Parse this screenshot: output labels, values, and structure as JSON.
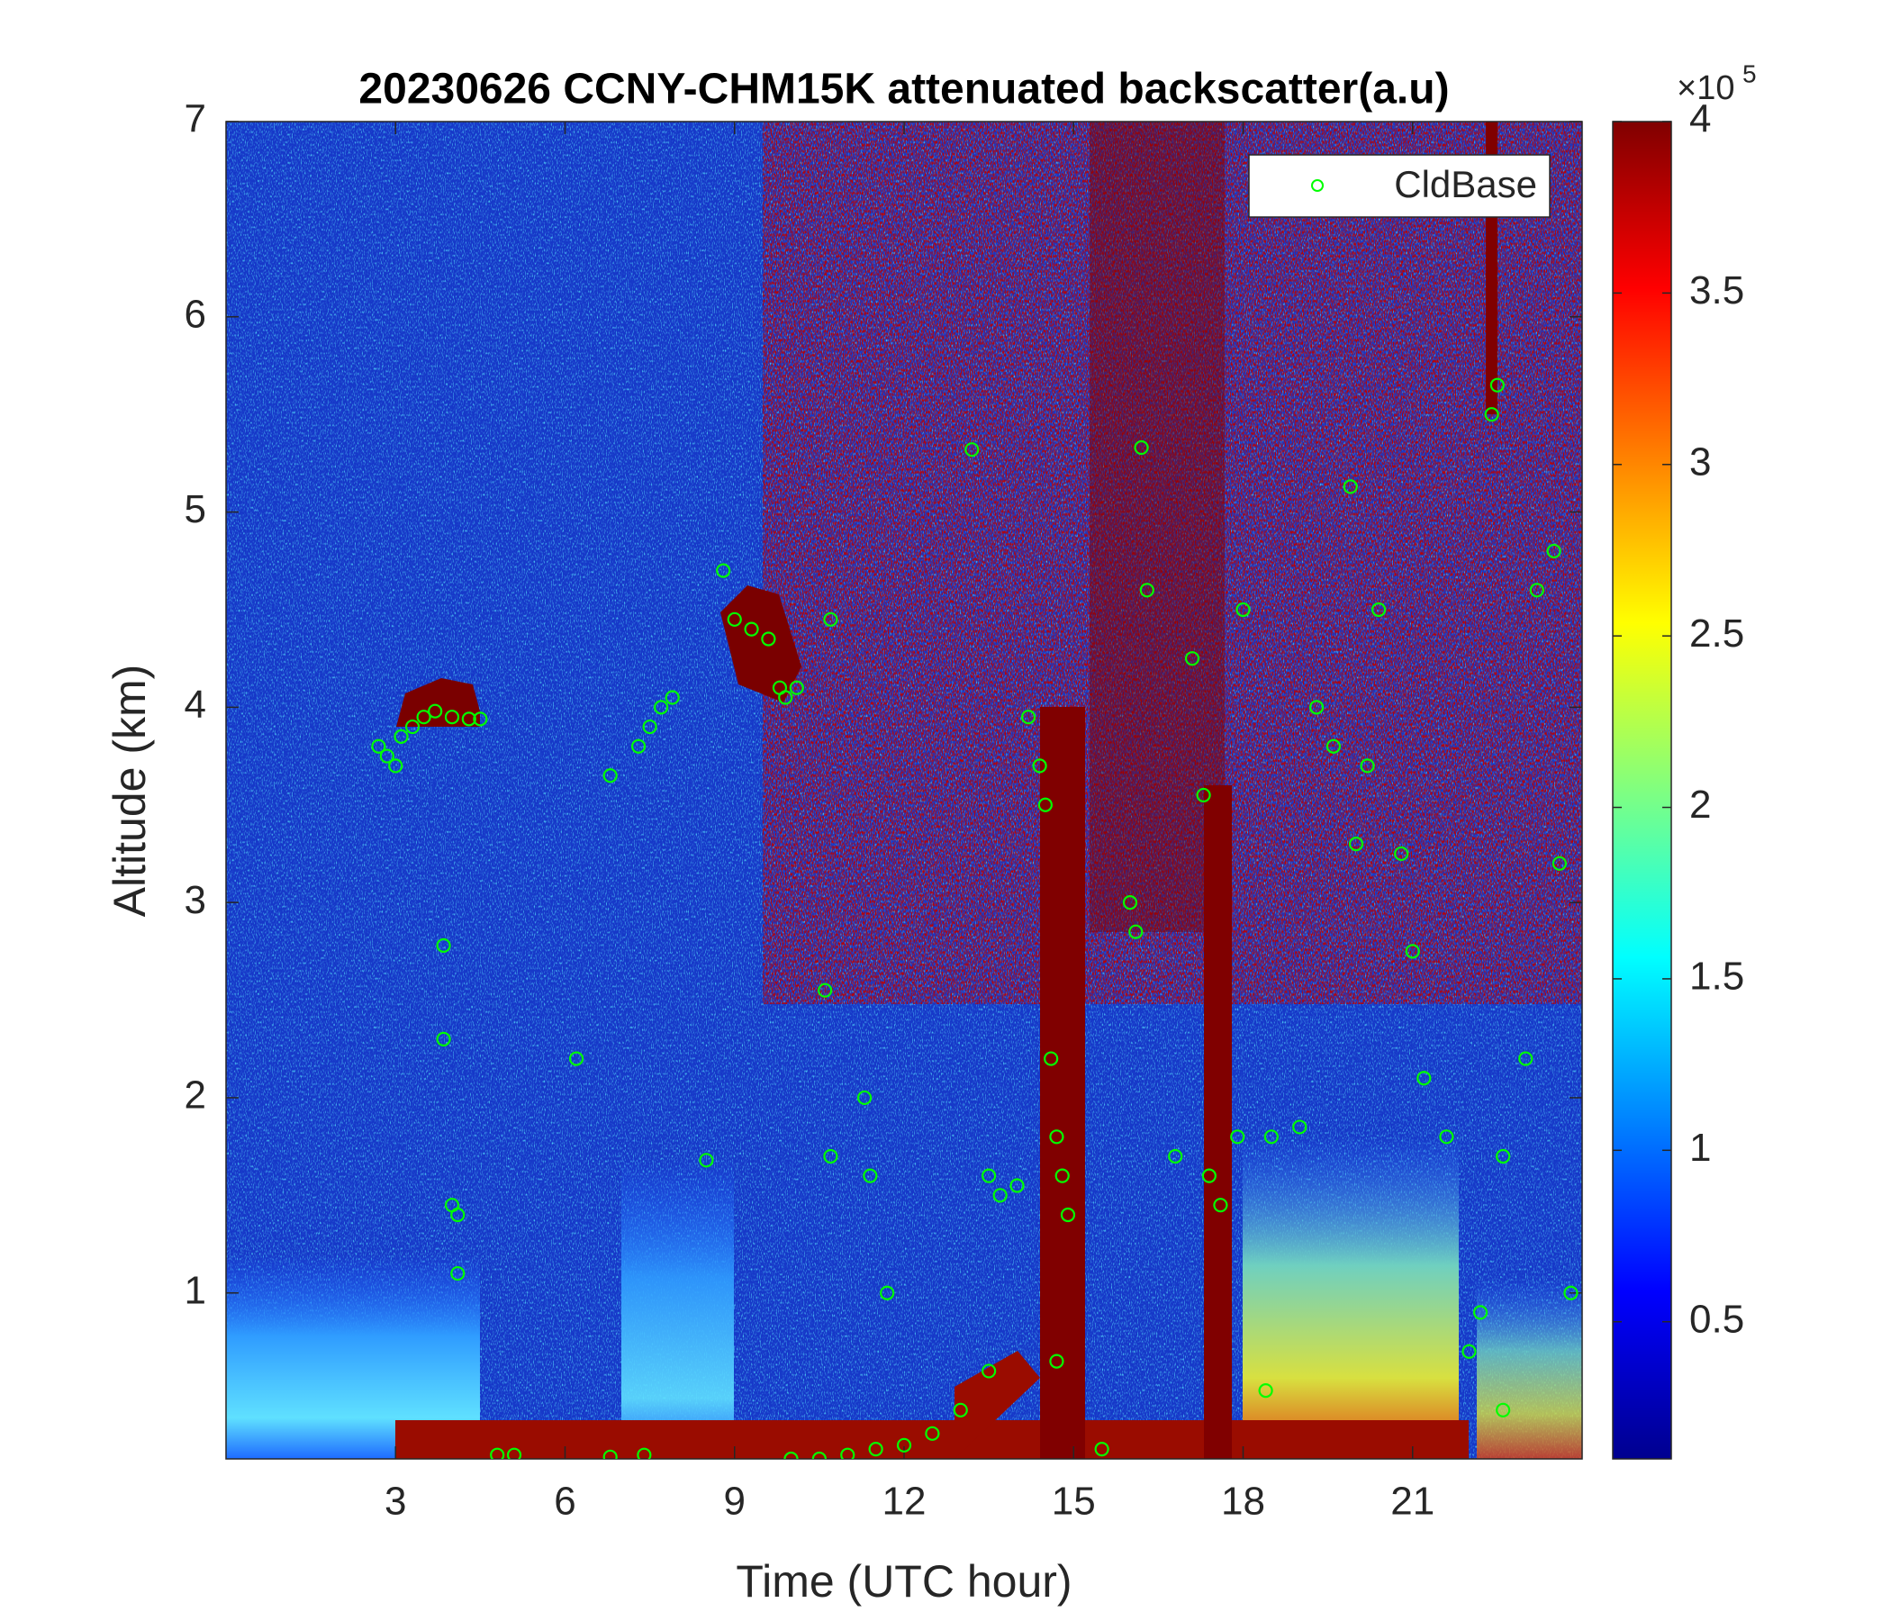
{
  "chart_data": {
    "type": "scatter",
    "title": "20230626 CCNY-CHM15K attenuated backscatter(a.u)",
    "x_label": "Time (UTC hour)",
    "y_label": "Altitude (km)",
    "xlim": [
      0,
      24
    ],
    "xticks": [
      3,
      6,
      9,
      12,
      15,
      18,
      21
    ],
    "ylim": [
      0.15,
      7
    ],
    "yticks": [
      1,
      2,
      3,
      4,
      5,
      6,
      7
    ],
    "legend": "upper right",
    "colorbar": {
      "colormap": "jet",
      "lim": [
        0.1,
        4
      ],
      "ticks": [
        0.5,
        1,
        1.5,
        2,
        2.5,
        3,
        3.5,
        4
      ],
      "multiplier": "×10",
      "exponent": "5"
    },
    "series": [
      {
        "name": "CldBase",
        "color": "#00ff00",
        "x": [
          2.7,
          2.85,
          3.0,
          3.1,
          3.3,
          3.5,
          3.7,
          4.0,
          4.3,
          4.5,
          3.85,
          3.85,
          4.0,
          4.1,
          4.1,
          6.2,
          6.8,
          7.3,
          7.5,
          7.7,
          7.9,
          8.5,
          8.8,
          9.0,
          9.3,
          9.6,
          9.8,
          9.9,
          10.1,
          10.0,
          10.5,
          11.0,
          11.5,
          12.0,
          12.5,
          13.0,
          13.5,
          10.7,
          10.7,
          10.6,
          11.3,
          11.4,
          11.7,
          13.2,
          13.5,
          13.7,
          14.0,
          14.2,
          14.4,
          14.5,
          14.6,
          14.7,
          14.8,
          14.9,
          14.7,
          15.5,
          16.0,
          16.1,
          16.3,
          16.2,
          16.8,
          17.1,
          17.3,
          17.4,
          17.6,
          17.9,
          18.0,
          18.4,
          18.5,
          19.0,
          19.3,
          19.6,
          19.9,
          20.0,
          20.2,
          20.4,
          20.8,
          21.0,
          21.2,
          21.6,
          22.4,
          22.5,
          22.0,
          22.2,
          22.6,
          23.0,
          23.2,
          23.5,
          23.6,
          23.8,
          22.6,
          5.1,
          6.8,
          7.4,
          4.8
        ],
        "y": [
          3.8,
          3.75,
          3.7,
          3.85,
          3.9,
          3.95,
          3.98,
          3.95,
          3.94,
          3.94,
          2.78,
          2.3,
          1.45,
          1.4,
          1.1,
          2.2,
          3.65,
          3.8,
          3.9,
          4.0,
          4.05,
          1.68,
          4.7,
          4.45,
          4.4,
          4.35,
          4.1,
          4.05,
          4.1,
          0.15,
          0.15,
          0.17,
          0.2,
          0.22,
          0.28,
          0.4,
          0.6,
          4.45,
          1.7,
          2.55,
          2.0,
          1.6,
          1.0,
          5.32,
          1.6,
          1.5,
          1.55,
          3.95,
          3.7,
          3.5,
          2.2,
          1.8,
          1.6,
          1.4,
          0.65,
          0.2,
          3.0,
          2.85,
          4.6,
          5.33,
          1.7,
          4.25,
          3.55,
          1.6,
          1.45,
          1.8,
          4.5,
          0.5,
          1.8,
          1.85,
          4.0,
          3.8,
          5.13,
          3.3,
          3.7,
          4.5,
          3.25,
          2.75,
          2.1,
          1.8,
          5.5,
          5.65,
          0.7,
          0.9,
          1.7,
          2.2,
          4.6,
          4.8,
          3.2,
          1.0,
          0.4,
          0.17,
          0.16,
          0.17,
          0.17
        ]
      }
    ]
  }
}
